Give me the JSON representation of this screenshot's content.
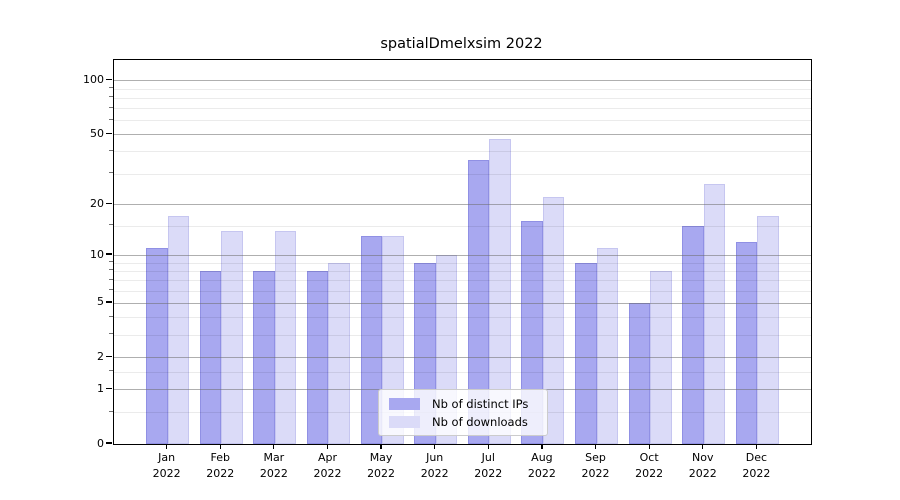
{
  "chart_data": {
    "type": "bar",
    "title": "spatialDmelxsim 2022",
    "categories": [
      "Jan",
      "Feb",
      "Mar",
      "Apr",
      "May",
      "Jun",
      "Jul",
      "Aug",
      "Sep",
      "Oct",
      "Nov",
      "Dec"
    ],
    "x_tick_second_line": "2022",
    "series": [
      {
        "name": "Nb of distinct IPs",
        "color": "#a8a8f0",
        "edge_color": "#9090e4",
        "values": [
          11,
          8,
          8,
          8,
          13,
          9,
          36,
          16,
          9,
          5,
          15,
          12
        ]
      },
      {
        "name": "Nb of downloads",
        "color": "#dbdbf8",
        "edge_color": "#c6c6f0",
        "values": [
          17,
          14,
          14,
          9,
          13,
          10,
          47,
          22,
          11,
          8,
          26,
          17
        ]
      }
    ],
    "yscale": "log1p",
    "ylim": [
      0,
      130
    ],
    "yticks": [
      0,
      1,
      2,
      5,
      10,
      20,
      50,
      100
    ],
    "ytick_labels": [
      "0",
      "1",
      "2",
      "5",
      "10",
      "20",
      "50",
      "100"
    ],
    "yticks_minor": [
      0.5,
      1.5,
      3,
      4,
      6,
      7,
      8,
      9,
      15,
      30,
      40,
      60,
      70,
      80,
      90
    ],
    "grid": true,
    "legend": {
      "position": "lower center"
    },
    "colors": {
      "grid_major": "rgba(110,110,110,0.55)",
      "grid_minor": "rgba(0,0,0,0.08)",
      "spine": "#000000",
      "text": "#000000",
      "legend_border": "#cccccc",
      "legend_bg": "rgba(255,255,255,0.8)"
    }
  }
}
